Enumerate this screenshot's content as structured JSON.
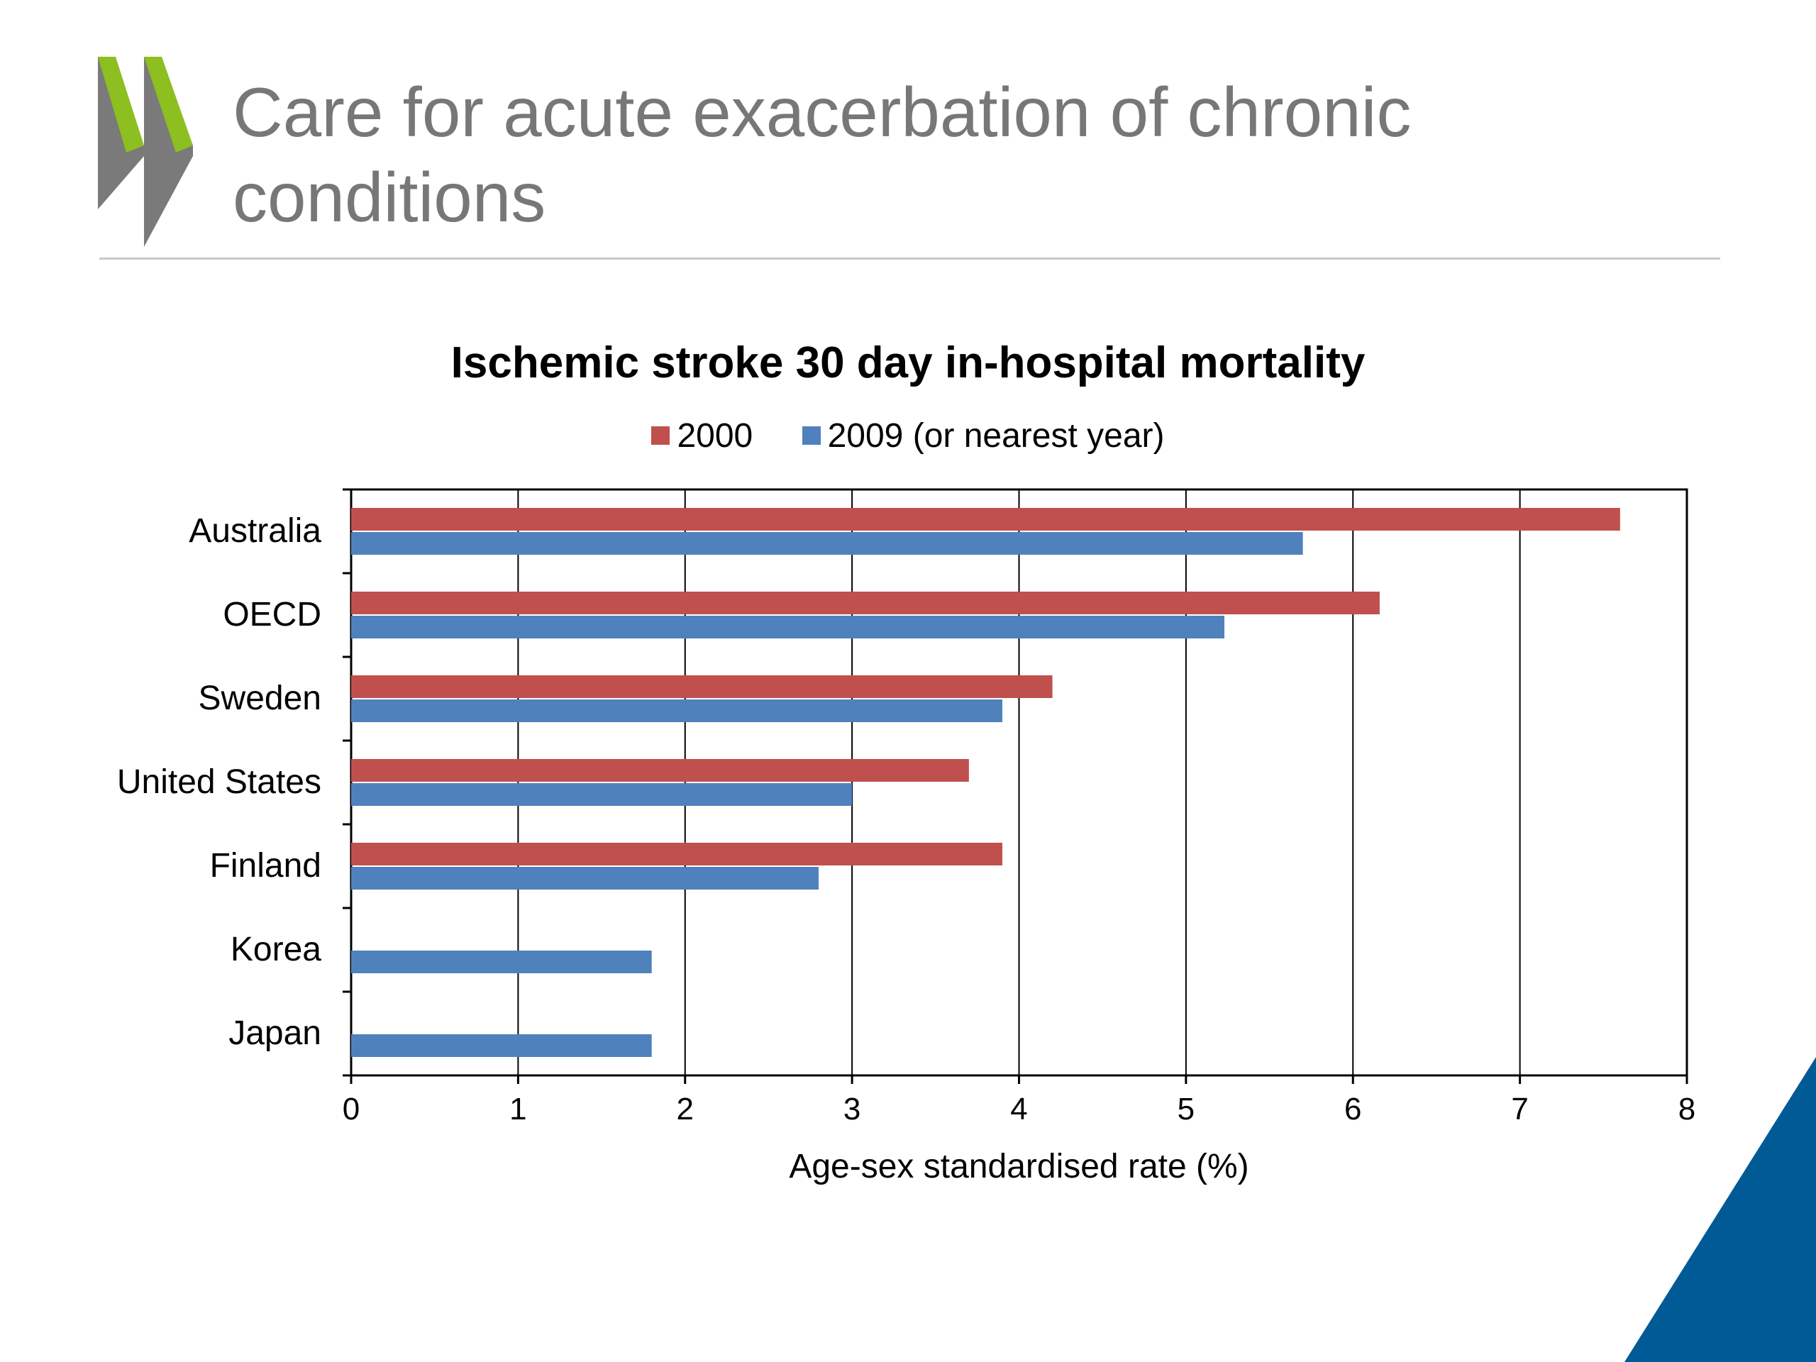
{
  "slide": {
    "title_line1": "Care for acute exacerbation of chronic",
    "title_line2": "conditions"
  },
  "colors": {
    "title_gray": "#777777",
    "logo_green": "#8cbf1f",
    "logo_gray": "#7a7a7a",
    "accent_blue": "#005a96",
    "series_2000": "#c0504d",
    "series_2009": "#4f81bd"
  },
  "icons": [
    "oecd-chevron-logo-icon"
  ],
  "chart_data": {
    "type": "bar",
    "orientation": "horizontal",
    "title": "Ischemic stroke 30 day in-hospital mortality",
    "xlabel": "Age-sex standardised rate (%)",
    "ylabel": "",
    "xlim": [
      0,
      8
    ],
    "x_ticks": [
      "0",
      "1",
      "2",
      "3",
      "4",
      "5",
      "6",
      "7",
      "8"
    ],
    "grid": "vertical",
    "legend_position": "top",
    "categories": [
      "Australia",
      "OECD",
      "Sweden",
      "United States",
      "Finland",
      "Korea",
      "Japan"
    ],
    "series": [
      {
        "name": "2000",
        "color": "#c0504d",
        "values": [
          7.6,
          6.16,
          4.2,
          3.7,
          3.9,
          null,
          null
        ]
      },
      {
        "name": "2009 (or nearest year)",
        "color": "#4f81bd",
        "values": [
          5.7,
          5.23,
          3.9,
          3.0,
          2.8,
          1.8,
          1.8
        ]
      }
    ]
  }
}
